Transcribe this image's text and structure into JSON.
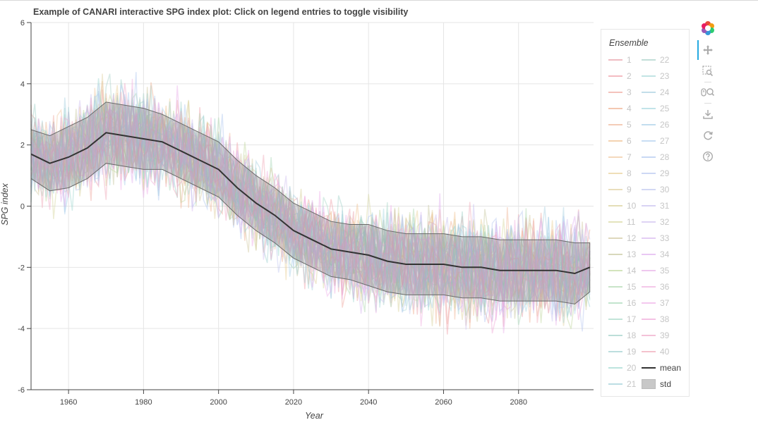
{
  "title": "Example of CANARI interactive SPG index plot: Click on legend entries to toggle visibility",
  "toolbar": {
    "tools": [
      {
        "name": "bokeh-logo",
        "icon": "bokeh-logo-icon"
      },
      {
        "name": "pan",
        "icon": "pan-icon"
      },
      {
        "name": "box-zoom",
        "icon": "box-zoom-icon"
      },
      {
        "name": "wheel-zoom",
        "icon": "wheel-zoom-icon"
      },
      {
        "name": "save",
        "icon": "save-icon"
      },
      {
        "name": "reset",
        "icon": "reset-icon"
      },
      {
        "name": "help",
        "icon": "help-icon"
      }
    ]
  },
  "chart_data": {
    "type": "line",
    "title": "Example of CANARI interactive SPG index plot: Click on legend entries to toggle visibility",
    "xlabel": "Year",
    "ylabel": "SPG index",
    "xlim": [
      1950,
      2100
    ],
    "ylim": [
      -6,
      6
    ],
    "xticks": [
      1960,
      1980,
      2000,
      2020,
      2040,
      2060,
      2080
    ],
    "yticks": [
      -6,
      -4,
      -2,
      0,
      2,
      4,
      6
    ],
    "grid": true,
    "legend": {
      "title": "Ensemble",
      "placement": "right",
      "entries": [
        "1",
        "2",
        "3",
        "4",
        "5",
        "6",
        "7",
        "8",
        "9",
        "10",
        "11",
        "12",
        "13",
        "14",
        "15",
        "16",
        "17",
        "18",
        "19",
        "20",
        "21",
        "22",
        "23",
        "24",
        "25",
        "26",
        "27",
        "28",
        "29",
        "30",
        "31",
        "32",
        "33",
        "34",
        "35",
        "36",
        "37",
        "38",
        "39",
        "40",
        "mean",
        "std"
      ],
      "muted_entries": [
        "1",
        "2",
        "3",
        "4",
        "5",
        "6",
        "7",
        "8",
        "9",
        "10",
        "11",
        "12",
        "13",
        "14",
        "15",
        "16",
        "17",
        "18",
        "19",
        "20",
        "21",
        "22",
        "23",
        "24",
        "25",
        "26",
        "27",
        "28",
        "29",
        "30",
        "31",
        "32",
        "33",
        "34",
        "35",
        "36",
        "37",
        "38",
        "39",
        "40"
      ]
    },
    "ensemble_members": 40,
    "ensemble_colors": [
      "#e8a0a8",
      "#f0a0a8",
      "#f0a8a0",
      "#f0b090",
      "#f0b898",
      "#f0c090",
      "#f0c8a0",
      "#e8d098",
      "#e0d0a0",
      "#d8d098",
      "#d8d8a0",
      "#d0c8a0",
      "#c8c8a0",
      "#c0d8a0",
      "#b0d8b0",
      "#a8d8b8",
      "#a8d8c8",
      "#a0d0c8",
      "#a0d0d0",
      "#a0d8d0",
      "#a0d0d8",
      "#a8d0c8",
      "#a8d8d8",
      "#a8d0e0",
      "#a8d8e0",
      "#a8d0e8",
      "#b0d0f0",
      "#b0c8f0",
      "#b8c8f0",
      "#c0c8f0",
      "#c8c0f0",
      "#d0c0f0",
      "#d8b8f0",
      "#e0b0f0",
      "#e8b0e8",
      "#f0b0e0",
      "#f0b0e8",
      "#f0a8d8",
      "#f0a8c8",
      "#f0a8b8"
    ],
    "series": [
      {
        "name": "mean",
        "color": "#333333",
        "x": [
          1950,
          1955,
          1960,
          1965,
          1970,
          1975,
          1980,
          1985,
          1990,
          1995,
          2000,
          2005,
          2010,
          2015,
          2020,
          2025,
          2030,
          2035,
          2040,
          2045,
          2050,
          2055,
          2060,
          2065,
          2070,
          2075,
          2080,
          2085,
          2090,
          2095,
          2099
        ],
        "values": [
          1.7,
          1.4,
          1.6,
          1.9,
          2.4,
          2.3,
          2.2,
          2.1,
          1.8,
          1.5,
          1.2,
          0.6,
          0.1,
          -0.3,
          -0.8,
          -1.1,
          -1.4,
          -1.5,
          -1.6,
          -1.8,
          -1.9,
          -1.9,
          -1.9,
          -2.0,
          -2.0,
          -2.1,
          -2.1,
          -2.1,
          -2.1,
          -2.2,
          -2.0
        ]
      },
      {
        "name": "std",
        "color": "#999999",
        "x": [
          1950,
          1955,
          1960,
          1965,
          1970,
          1975,
          1980,
          1985,
          1990,
          1995,
          2000,
          2005,
          2010,
          2015,
          2020,
          2025,
          2030,
          2035,
          2040,
          2045,
          2050,
          2055,
          2060,
          2065,
          2070,
          2075,
          2080,
          2085,
          2090,
          2095,
          2099
        ],
        "upper": [
          2.5,
          2.3,
          2.6,
          2.9,
          3.4,
          3.3,
          3.2,
          3.0,
          2.7,
          2.4,
          2.1,
          1.5,
          1.0,
          0.6,
          0.1,
          -0.2,
          -0.5,
          -0.6,
          -0.6,
          -0.8,
          -0.9,
          -0.9,
          -0.9,
          -1.0,
          -1.0,
          -1.1,
          -1.1,
          -1.1,
          -1.1,
          -1.2,
          -1.2
        ],
        "lower": [
          0.9,
          0.5,
          0.6,
          0.9,
          1.4,
          1.3,
          1.2,
          1.2,
          0.9,
          0.6,
          0.3,
          -0.3,
          -0.8,
          -1.2,
          -1.7,
          -2.0,
          -2.3,
          -2.4,
          -2.6,
          -2.8,
          -2.9,
          -2.9,
          -2.9,
          -3.0,
          -3.0,
          -3.1,
          -3.1,
          -3.1,
          -3.1,
          -3.2,
          -2.8
        ]
      }
    ]
  }
}
